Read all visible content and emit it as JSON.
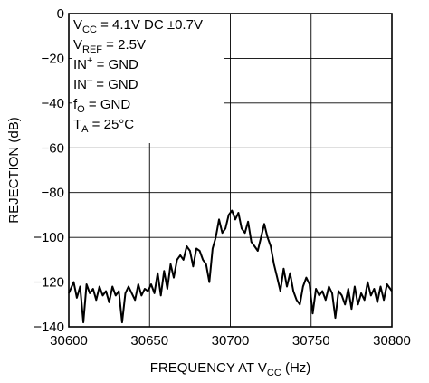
{
  "chart_data": {
    "type": "line",
    "title": "",
    "xlabel": {
      "main": "FREQUENCY AT V",
      "sub": "CC",
      "suffix": " (Hz)"
    },
    "ylabel": "REJECTION (dB)",
    "xlim": [
      30600,
      30800
    ],
    "ylim": [
      -140,
      0
    ],
    "x_ticks": [
      30600,
      30650,
      30700,
      30750,
      30800
    ],
    "y_ticks": [
      0,
      -20,
      -40,
      -60,
      -80,
      -100,
      -120,
      -140
    ],
    "grid": true,
    "annotations": [
      {
        "main": "V",
        "sub": "CC",
        "rest": " = 4.1V DC ±0.7V"
      },
      {
        "main": "V",
        "sub": "REF",
        "rest": " = 2.5V"
      },
      {
        "main": "IN",
        "sup": "+",
        "rest": " = GND"
      },
      {
        "main": "IN",
        "sup": "–",
        "rest": " = GND"
      },
      {
        "main": "f",
        "sub": "O",
        "rest": " = GND"
      },
      {
        "main": "T",
        "sub": "A",
        "rest": " = 25°C"
      }
    ],
    "series": [
      {
        "x": [
          30600,
          30603,
          30605,
          30607,
          30609,
          30611,
          30613,
          30615,
          30617,
          30619,
          30621,
          30623,
          30625,
          30627,
          30629,
          30631,
          30633,
          30635,
          30637,
          30639,
          30641,
          30643,
          30645,
          30647,
          30649,
          30651,
          30653,
          30655,
          30657,
          30659,
          30661,
          30663,
          30665,
          30667,
          30669,
          30671,
          30673,
          30675,
          30677,
          30679,
          30681,
          30683,
          30685,
          30687,
          30689,
          30691,
          30693,
          30695,
          30697,
          30699,
          30701,
          30703,
          30705,
          30707,
          30709,
          30711,
          30713,
          30715,
          30717,
          30719,
          30721,
          30723,
          30725,
          30727,
          30729,
          30731,
          30733,
          30735,
          30737,
          30739,
          30741,
          30743,
          30745,
          30747,
          30749,
          30751,
          30753,
          30755,
          30757,
          30759,
          30761,
          30763,
          30765,
          30767,
          30769,
          30771,
          30773,
          30775,
          30777,
          30779,
          30781,
          30783,
          30785,
          30787,
          30789,
          30791,
          30793,
          30795,
          30797,
          30800
        ],
        "values": [
          -125,
          -120,
          -127,
          -122,
          -138,
          -121,
          -125,
          -123,
          -128,
          -122,
          -126,
          -124,
          -129,
          -122,
          -126,
          -124,
          -138,
          -125,
          -122,
          -125,
          -128,
          -121,
          -126,
          -123,
          -124,
          -121,
          -125,
          -116,
          -126,
          -115,
          -123,
          -112,
          -118,
          -110,
          -108,
          -110,
          -104,
          -106,
          -113,
          -105,
          -106,
          -110,
          -112,
          -120,
          -105,
          -100,
          -92,
          -98,
          -96,
          -90,
          -88,
          -92,
          -89,
          -96,
          -98,
          -93,
          -102,
          -104,
          -106,
          -100,
          -94,
          -100,
          -104,
          -112,
          -118,
          -124,
          -114,
          -122,
          -116,
          -124,
          -128,
          -130,
          -122,
          -118,
          -121,
          -134,
          -123,
          -126,
          -124,
          -128,
          -122,
          -125,
          -136,
          -124,
          -126,
          -130,
          -123,
          -132,
          -122,
          -130,
          -125,
          -128,
          -120,
          -126,
          -123,
          -129,
          -122,
          -128,
          -121,
          -124
        ]
      }
    ]
  }
}
